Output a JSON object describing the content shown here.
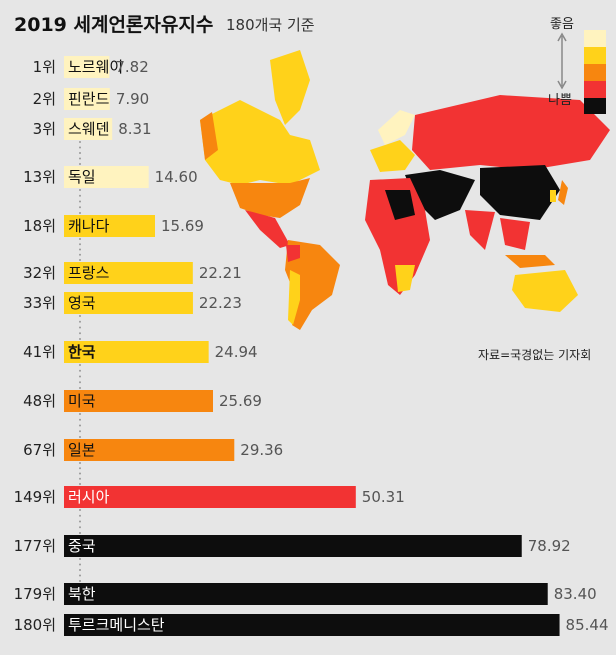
{
  "header": {
    "title": "2019 세계언론자유지수",
    "subtitle": "180개국 기준"
  },
  "source": "자료=국경없는 기자회",
  "legend": {
    "good_label": "좋음",
    "bad_label": "나쁨",
    "colors": [
      "#fff3bf",
      "#ffd21a",
      "#f7860f",
      "#f23333",
      "#0d0d0d"
    ]
  },
  "chart_data": {
    "type": "bar",
    "title": "2019 세계언론자유지수",
    "subtitle": "180개국 기준",
    "categories": [
      "노르웨이",
      "핀란드",
      "스웨덴",
      "독일",
      "캐나다",
      "프랑스",
      "영국",
      "한국",
      "미국",
      "일본",
      "러시아",
      "중국",
      "북한",
      "투르크메니스탄"
    ],
    "ranks": [
      "1위",
      "2위",
      "3위",
      "13위",
      "18위",
      "32위",
      "33위",
      "41위",
      "48위",
      "67위",
      "149위",
      "177위",
      "179위",
      "180위"
    ],
    "values": [
      7.82,
      7.9,
      8.31,
      14.6,
      15.69,
      22.21,
      22.23,
      24.94,
      25.69,
      29.36,
      50.31,
      78.92,
      83.4,
      85.44
    ],
    "value_labels": [
      "7.82",
      "7.90",
      "8.31",
      "14.60",
      "15.69",
      "22.21",
      "22.23",
      "24.94",
      "25.69",
      "29.36",
      "50.31",
      "78.92",
      "83.40",
      "85.44"
    ],
    "bar_colors": [
      "#fff3bf",
      "#fff3bf",
      "#fff3bf",
      "#fff3bf",
      "#ffd21a",
      "#ffd21a",
      "#ffd21a",
      "#ffd21a",
      "#f7860f",
      "#f7860f",
      "#f23333",
      "#0d0d0d",
      "#0d0d0d",
      "#0d0d0d"
    ],
    "highlight": "한국",
    "xlim": [
      0,
      90
    ]
  }
}
